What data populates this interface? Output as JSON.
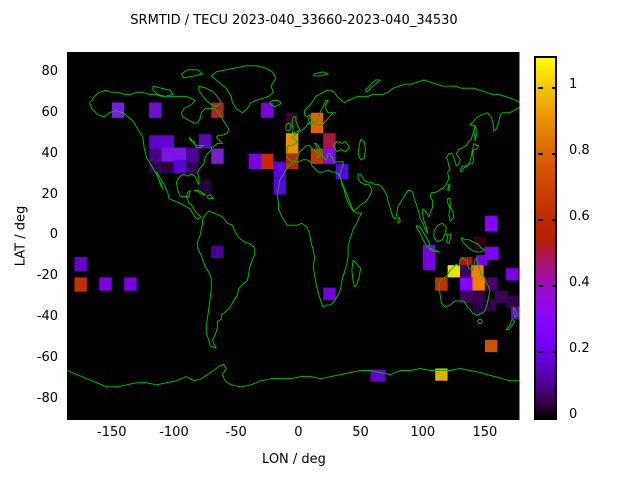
{
  "window": {
    "title": "SRMTID / TECU 2023-040_33660-2023-040_34530"
  },
  "colors": {
    "page_bg": "#ffffff",
    "plot_bg": "#000000",
    "coastline": "#00b800",
    "text": "#000000",
    "meridian_line": "#ffffff"
  },
  "chart_data": {
    "type": "heatmap",
    "title": "SRMTID / TECU 2023-040_33660-2023-040_34530",
    "xlabel": "LON / deg",
    "ylabel": "LAT / deg",
    "xlim": [
      -186,
      179
    ],
    "ylim": [
      -90,
      90
    ],
    "grid": false,
    "axes": {
      "xticks": [
        -150,
        -100,
        -50,
        0,
        50,
        100,
        150
      ],
      "yticks": [
        80,
        60,
        40,
        20,
        0,
        -20,
        -40,
        -60,
        -80
      ]
    },
    "basemap": "world coastlines, green on black",
    "colorbar": {
      "position": "right",
      "min": 0,
      "max": 1.1,
      "tick_values": [
        1,
        0.8,
        0.6,
        0.4,
        0.2,
        0
      ],
      "tick_labels": [
        "1",
        "0.8",
        "0.6",
        "0.4",
        "0.2",
        "0"
      ],
      "palette": "gnuplot pm3d black-purple-red-yellow (rgbformulae 7,5,15)",
      "palette_stops": [
        [
          0,
          "#000000"
        ],
        [
          0.05,
          "#39004f"
        ],
        [
          0.1,
          "#510096"
        ],
        [
          0.15,
          "#6300ce"
        ],
        [
          0.2,
          "#7200f3"
        ],
        [
          0.25,
          "#8004ff"
        ],
        [
          0.3,
          "#8c07f3"
        ],
        [
          0.35,
          "#970bce"
        ],
        [
          0.4,
          "#a11096"
        ],
        [
          0.45,
          "#ab174f"
        ],
        [
          0.5,
          "#b42000"
        ],
        [
          0.55,
          "#bd2a00"
        ],
        [
          0.6,
          "#c63700"
        ],
        [
          0.65,
          "#ce4600"
        ],
        [
          0.7,
          "#d55700"
        ],
        [
          0.75,
          "#dd6c00"
        ],
        [
          0.8,
          "#e48300"
        ],
        [
          0.85,
          "#eb9d00"
        ],
        [
          0.9,
          "#f2ba00"
        ],
        [
          0.95,
          "#f9db00"
        ],
        [
          1,
          "#ffff00"
        ]
      ]
    },
    "cells": [
      {
        "lon": [
          -150,
          -140
        ],
        "lat": [
          57.5,
          65
        ],
        "value": 0.27,
        "color": "#7d1ce0"
      },
      {
        "lon": [
          -120,
          -110
        ],
        "lat": [
          57.5,
          65
        ],
        "value": 0.22,
        "color": "#6a10d8"
      },
      {
        "lon": [
          -70,
          -60
        ],
        "lat": [
          57.5,
          65
        ],
        "value": 0.55,
        "color": "#b51f2a"
      },
      {
        "lon": [
          -120,
          -110
        ],
        "lat": [
          42.5,
          49
        ],
        "value": 0.2,
        "color": "#6400cf"
      },
      {
        "lon": [
          -110,
          -100
        ],
        "lat": [
          42.5,
          49
        ],
        "value": 0.2,
        "color": "#6400cf"
      },
      {
        "lon": [
          -80,
          -70
        ],
        "lat": [
          42.5,
          49.5
        ],
        "value": 0.15,
        "color": "#5a0ab4"
      },
      {
        "lon": [
          -120,
          -110
        ],
        "lat": [
          36,
          42.5
        ],
        "value": 0.1,
        "color": "#4a0085"
      },
      {
        "lon": [
          -110,
          -100
        ],
        "lat": [
          36,
          43
        ],
        "value": 0.27,
        "color": "#7a14e6"
      },
      {
        "lon": [
          -100,
          -90
        ],
        "lat": [
          36,
          43
        ],
        "value": 0.27,
        "color": "#7a14e6"
      },
      {
        "lon": [
          -90,
          -80
        ],
        "lat": [
          36,
          43
        ],
        "value": 0.1,
        "color": "#4a0090"
      },
      {
        "lon": [
          -70,
          -60
        ],
        "lat": [
          35,
          42.5
        ],
        "value": 0.26,
        "color": "#7a1fd0"
      },
      {
        "lon": [
          -120,
          -110
        ],
        "lat": [
          30.5,
          36
        ],
        "value": 0.055,
        "color": "#340052"
      },
      {
        "lon": [
          -110,
          -100
        ],
        "lat": [
          30.5,
          36
        ],
        "value": 0.04,
        "color": "#2a0042"
      },
      {
        "lon": [
          -100,
          -90
        ],
        "lat": [
          30.5,
          37
        ],
        "value": 0.18,
        "color": "#5c00d0"
      },
      {
        "lon": [
          -90,
          -80
        ],
        "lat": [
          30,
          36
        ],
        "value": 0.05,
        "color": "#320052"
      },
      {
        "lon": [
          -80,
          -70
        ],
        "lat": [
          20,
          27
        ],
        "value": 0.035,
        "color": "#260038"
      },
      {
        "lon": [
          -30,
          -20
        ],
        "lat": [
          57.5,
          65
        ],
        "value": 0.26,
        "color": "#7a00e0"
      },
      {
        "lon": [
          -10,
          0
        ],
        "lat": [
          52.5,
          60
        ],
        "value": 0.03,
        "color": "#38002a"
      },
      {
        "lon": [
          10,
          20
        ],
        "lat": [
          50,
          60
        ],
        "value": 0.8,
        "color": "#e06200"
      },
      {
        "lon": [
          20,
          30
        ],
        "lat": [
          43,
          50
        ],
        "value": 0.48,
        "color": "#aa1540"
      },
      {
        "lon": [
          -10,
          0
        ],
        "lat": [
          40,
          50
        ],
        "value": 0.92,
        "color": "#e89200"
      },
      {
        "lon": [
          10,
          20
        ],
        "lat": [
          35,
          42.5
        ],
        "value": 0.65,
        "color": "#c63200"
      },
      {
        "lon": [
          20,
          30
        ],
        "lat": [
          35,
          43
        ],
        "value": 0.33,
        "color": "#8a0ae6"
      },
      {
        "lon": [
          -40,
          -30
        ],
        "lat": [
          32.5,
          40
        ],
        "value": 0.25,
        "color": "#7700dd"
      },
      {
        "lon": [
          -30,
          -20
        ],
        "lat": [
          32.5,
          40
        ],
        "value": 0.63,
        "color": "#c62a00"
      },
      {
        "lon": [
          -10,
          0
        ],
        "lat": [
          32.5,
          40
        ],
        "value": 0.6,
        "color": "#bb2600"
      },
      {
        "lon": [
          -20,
          -10
        ],
        "lat": [
          28,
          36
        ],
        "value": 0.2,
        "color": "#5a00e6"
      },
      {
        "lon": [
          -20,
          -10
        ],
        "lat": [
          20,
          28
        ],
        "value": 0.2,
        "color": "#5a00e6"
      },
      {
        "lon": [
          30,
          40
        ],
        "lat": [
          27.5,
          35
        ],
        "value": 0.22,
        "color": "#5c00f2"
      },
      {
        "lon": [
          20,
          30
        ],
        "lat": [
          -31.5,
          -25.5
        ],
        "value": 0.24,
        "color": "#7300e0"
      },
      {
        "lon": [
          -70,
          -60
        ],
        "lat": [
          -11,
          -5
        ],
        "value": 0.11,
        "color": "#4b0095"
      },
      {
        "lon": [
          -180,
          -170
        ],
        "lat": [
          -17.5,
          -10.5
        ],
        "value": 0.19,
        "color": "#6600cc"
      },
      {
        "lon": [
          -180,
          -170
        ],
        "lat": [
          -27.5,
          -20.5
        ],
        "value": 0.63,
        "color": "#c03000"
      },
      {
        "lon": [
          -160,
          -150
        ],
        "lat": [
          -27,
          -20.5
        ],
        "value": 0.26,
        "color": "#7a00e6"
      },
      {
        "lon": [
          -140,
          -130
        ],
        "lat": [
          -27,
          -20.5
        ],
        "value": 0.26,
        "color": "#7a00e6"
      },
      {
        "lon": [
          150,
          160
        ],
        "lat": [
          2,
          9.5
        ],
        "value": 0.3,
        "color": "#8800ff"
      },
      {
        "lon": [
          141,
          151
        ],
        "lat": [
          -7,
          -0.5
        ],
        "value": 0.02,
        "color": "#300018"
      },
      {
        "lon": [
          150,
          161
        ],
        "lat": [
          -12,
          -5.5
        ],
        "value": 0.28,
        "color": "#8000ff"
      },
      {
        "lon": [
          100,
          110
        ],
        "lat": [
          -10.5,
          -4.5
        ],
        "value": 0.26,
        "color": "#7a00e0"
      },
      {
        "lon": [
          100,
          110
        ],
        "lat": [
          -17,
          -10.5
        ],
        "value": 0.26,
        "color": "#7a00e0"
      },
      {
        "lon": [
          130,
          140
        ],
        "lat": [
          -15.5,
          -10.5
        ],
        "value": 0.52,
        "color": "#a51d00"
      },
      {
        "lon": [
          143,
          152
        ],
        "lat": [
          -14.5,
          -9.5
        ],
        "value": 0.26,
        "color": "#7a00e0"
      },
      {
        "lon": [
          120,
          130
        ],
        "lat": [
          -20.5,
          -14.5
        ],
        "value": 1.05,
        "color": "#f0e000"
      },
      {
        "lon": [
          130,
          140
        ],
        "lat": [
          -20.5,
          -14.5
        ],
        "value": 0.07,
        "color": "#3c0060"
      },
      {
        "lon": [
          139,
          149
        ],
        "lat": [
          -20.5,
          -14.5
        ],
        "value": 0.88,
        "color": "#f08000"
      },
      {
        "lon": [
          110,
          120
        ],
        "lat": [
          -27,
          -20.5
        ],
        "value": 0.64,
        "color": "#c33000"
      },
      {
        "lon": [
          130,
          140
        ],
        "lat": [
          -27,
          -20.5
        ],
        "value": 0.3,
        "color": "#8800ff"
      },
      {
        "lon": [
          140,
          150
        ],
        "lat": [
          -27,
          -20.5
        ],
        "value": 0.88,
        "color": "#f08000"
      },
      {
        "lon": [
          150,
          160
        ],
        "lat": [
          -27,
          -20.5
        ],
        "value": 0.08,
        "color": "#48006a"
      },
      {
        "lon": [
          130,
          140
        ],
        "lat": [
          -33,
          -27
        ],
        "value": 0.07,
        "color": "#40005c"
      },
      {
        "lon": [
          140,
          150
        ],
        "lat": [
          -33,
          -27
        ],
        "value": 0.055,
        "color": "#36004e"
      },
      {
        "lon": [
          158,
          168
        ],
        "lat": [
          -33,
          -27
        ],
        "value": 0.065,
        "color": "#3c0058"
      },
      {
        "lon": [
          140,
          150
        ],
        "lat": [
          -39,
          -33
        ],
        "value": 0.04,
        "color": "#2a0040"
      },
      {
        "lon": [
          150,
          159
        ],
        "lat": [
          -37,
          -31
        ],
        "value": 0.05,
        "color": "#32004a"
      },
      {
        "lon": [
          167,
          177
        ],
        "lat": [
          -22,
          -16
        ],
        "value": 0.26,
        "color": "#7a00e6"
      },
      {
        "lon": [
          167,
          177
        ],
        "lat": [
          -35.5,
          -29.5
        ],
        "value": 0.045,
        "color": "#30004a"
      },
      {
        "lon": [
          171,
          180
        ],
        "lat": [
          -41,
          -35
        ],
        "value": 0.19,
        "color": "#6600cc"
      },
      {
        "lon": [
          150,
          160
        ],
        "lat": [
          -57,
          -51
        ],
        "value": 0.72,
        "color": "#cc5200"
      },
      {
        "lon": [
          58,
          70
        ],
        "lat": [
          -71.5,
          -65.5
        ],
        "value": 0.19,
        "color": "#6600cc"
      },
      {
        "lon": [
          110,
          120
        ],
        "lat": [
          -71,
          -65
        ],
        "value": 0.98,
        "color": "#e0b000"
      }
    ]
  }
}
